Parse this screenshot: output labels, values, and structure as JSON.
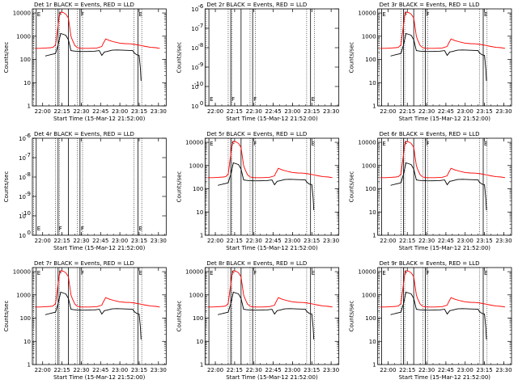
{
  "chart_data": [
    {
      "panel": "Det 1r",
      "title": "Det 1r BLACK = Events, RED = LLD",
      "variant": "normal"
    },
    {
      "panel": "Det 2r",
      "title": "Det 2r BLACK = Events, RED = LLD",
      "variant": "empty"
    },
    {
      "panel": "Det 3r",
      "title": "Det 3r BLACK = Events, RED = LLD",
      "variant": "normal"
    },
    {
      "panel": "Det 4r",
      "title": "Det 4r BLACK = Events, RED = LLD",
      "variant": "empty"
    },
    {
      "panel": "Det 5r",
      "title": "Det 5r BLACK = Events, RED = LLD",
      "variant": "normal"
    },
    {
      "panel": "Det 6r",
      "title": "Det 6r BLACK = Events, RED = LLD",
      "variant": "normal"
    },
    {
      "panel": "Det 7r",
      "title": "Det 7r BLACK = Events, RED = LLD",
      "variant": "normal"
    },
    {
      "panel": "Det 8r",
      "title": "Det 8r BLACK = Events, RED = LLD",
      "variant": "normal"
    },
    {
      "panel": "Det 9r",
      "title": "Det 9r BLACK = Events, RED = LLD",
      "variant": "normal"
    }
  ],
  "common": {
    "type": "line",
    "yscale": "log",
    "xlabel": "Start Time (15-Mar-12 21:52:00)",
    "ylabel": "Counts/sec",
    "xlim_minutes_after_start": [
      0,
      104
    ],
    "xticks": [
      {
        "label": "22:00",
        "t": 8
      },
      {
        "label": "22:15",
        "t": 23
      },
      {
        "label": "22:30",
        "t": 38
      },
      {
        "label": "22:45",
        "t": 53
      },
      {
        "label": "23:00",
        "t": 68
      },
      {
        "label": "23:15",
        "t": 83
      },
      {
        "label": "23:30",
        "t": 98
      }
    ],
    "normal_ylim": [
      1,
      15000
    ],
    "normal_yticks": [
      {
        "label": "1",
        "v": 1
      },
      {
        "label": "10",
        "v": 10
      },
      {
        "label": "100",
        "v": 100
      },
      {
        "label": "1000",
        "v": 1000
      },
      {
        "label": "10000",
        "v": 10000
      }
    ],
    "empty_ylim_exp": [
      0,
      10
    ],
    "empty_yticks": [
      {
        "label": "10",
        "sup": "-6",
        "e": 10
      },
      {
        "label": "10",
        "sup": "-7",
        "e": 8
      },
      {
        "label": "10",
        "sup": "-8",
        "e": 6
      },
      {
        "label": "10",
        "sup": "-9",
        "e": 4
      },
      {
        "label": "10",
        "sup": "-10",
        "e": 2
      },
      {
        "label": "10",
        "sup": "0",
        "e": 0
      }
    ],
    "vlines": [
      {
        "t": 3,
        "label": "E",
        "style": "solid"
      },
      {
        "t": 20,
        "label": "F",
        "style": "solid"
      },
      {
        "t": 28,
        "label": "",
        "style": "solid"
      },
      {
        "t": 37,
        "label": "F",
        "style": "solid"
      },
      {
        "t": 82,
        "label": "E",
        "style": "solid"
      }
    ],
    "dotted_lines_t": [
      1,
      18,
      21,
      35,
      39,
      79,
      85
    ],
    "series": [
      {
        "name": "Events",
        "color": "#000000",
        "points": [
          [
            10,
            140
          ],
          [
            12,
            150
          ],
          [
            14,
            160
          ],
          [
            16,
            170
          ],
          [
            18,
            180
          ],
          [
            20,
            420
          ],
          [
            22,
            1300
          ],
          [
            24,
            1200
          ],
          [
            26,
            1100
          ],
          [
            28,
            700
          ],
          [
            30,
            240
          ],
          [
            32,
            230
          ],
          [
            34,
            225
          ],
          [
            38,
            220
          ],
          [
            42,
            220
          ],
          [
            48,
            225
          ],
          [
            52,
            240
          ],
          [
            54,
            150
          ],
          [
            56,
            210
          ],
          [
            58,
            220
          ],
          [
            62,
            250
          ],
          [
            66,
            255
          ],
          [
            70,
            250
          ],
          [
            74,
            245
          ],
          [
            78,
            240
          ],
          [
            79,
            195
          ],
          [
            81,
            160
          ],
          [
            83,
            150
          ],
          [
            84,
            40
          ],
          [
            84.5,
            12
          ]
        ]
      },
      {
        "name": "LLD",
        "color": "#ff0000",
        "points": [
          [
            2,
            300
          ],
          [
            6,
            300
          ],
          [
            10,
            310
          ],
          [
            14,
            320
          ],
          [
            16,
            330
          ],
          [
            18,
            420
          ],
          [
            20,
            3000
          ],
          [
            21,
            8000
          ],
          [
            22,
            11000
          ],
          [
            24,
            10500
          ],
          [
            26,
            9000
          ],
          [
            28,
            6000
          ],
          [
            30,
            1000
          ],
          [
            31,
            700
          ],
          [
            33,
            400
          ],
          [
            35,
            320
          ],
          [
            38,
            300
          ],
          [
            44,
            300
          ],
          [
            50,
            310
          ],
          [
            54,
            360
          ],
          [
            55,
            480
          ],
          [
            57,
            760
          ],
          [
            60,
            650
          ],
          [
            64,
            560
          ],
          [
            68,
            500
          ],
          [
            72,
            480
          ],
          [
            76,
            470
          ],
          [
            80,
            440
          ],
          [
            84,
            400
          ],
          [
            88,
            360
          ],
          [
            92,
            330
          ],
          [
            96,
            320
          ],
          [
            99,
            300
          ]
        ]
      }
    ]
  }
}
